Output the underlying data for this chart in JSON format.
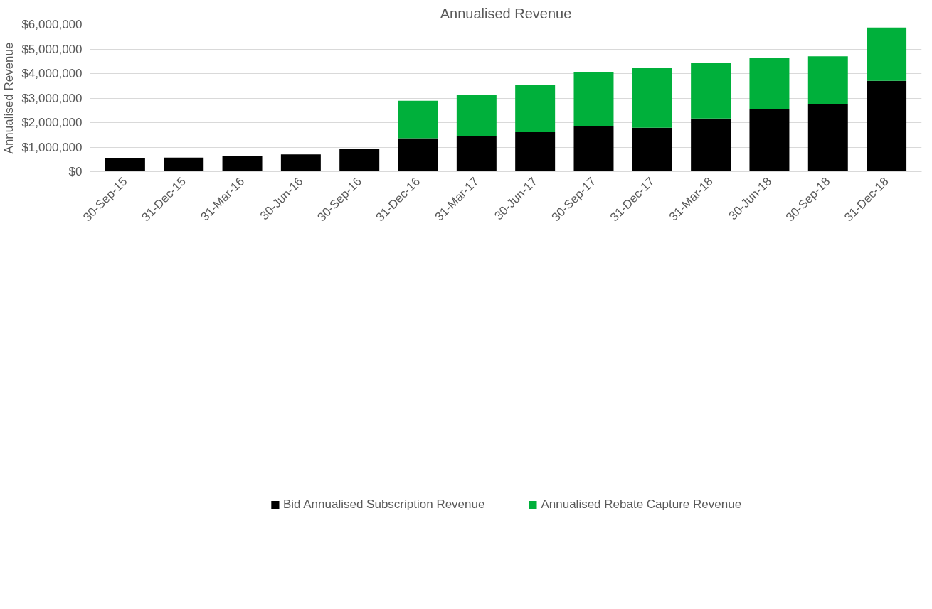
{
  "chart_data": {
    "type": "bar",
    "stacked": true,
    "title": "Annualised Revenue",
    "ylabel": "Annualised Revenue",
    "categories": [
      "30-Sep-15",
      "31-Dec-15",
      "31-Mar-16",
      "30-Jun-16",
      "30-Sep-16",
      "31-Dec-16",
      "31-Mar-17",
      "30-Jun-17",
      "30-Sep-17",
      "31-Dec-17",
      "31-Mar-18",
      "30-Jun-18",
      "30-Sep-18",
      "31-Dec-18"
    ],
    "series": [
      {
        "name": "Bid Annualised Subscription Revenue",
        "color": "#000000",
        "values": [
          540000,
          570000,
          650000,
          700000,
          940000,
          1360000,
          1460000,
          1610000,
          1840000,
          1790000,
          2170000,
          2540000,
          2740000,
          3700000
        ]
      },
      {
        "name": "Annualised Rebate Capture Revenue",
        "color": "#00b03b",
        "values": [
          null,
          null,
          null,
          null,
          null,
          1530000,
          1670000,
          1920000,
          2200000,
          2460000,
          2250000,
          2100000,
          1960000,
          2180000
        ]
      }
    ],
    "ylim": [
      0,
      6000000
    ],
    "yticks": [
      {
        "value": 0,
        "label": "$0"
      },
      {
        "value": 1000000,
        "label": "$1,000,000"
      },
      {
        "value": 2000000,
        "label": "$2,000,000"
      },
      {
        "value": 3000000,
        "label": "$3,000,000"
      },
      {
        "value": 4000000,
        "label": "$4,000,000"
      },
      {
        "value": 5000000,
        "label": "$5,000,000"
      },
      {
        "value": 6000000,
        "label": "$6,000,000"
      }
    ],
    "grid": "y",
    "legend": "bottom"
  }
}
